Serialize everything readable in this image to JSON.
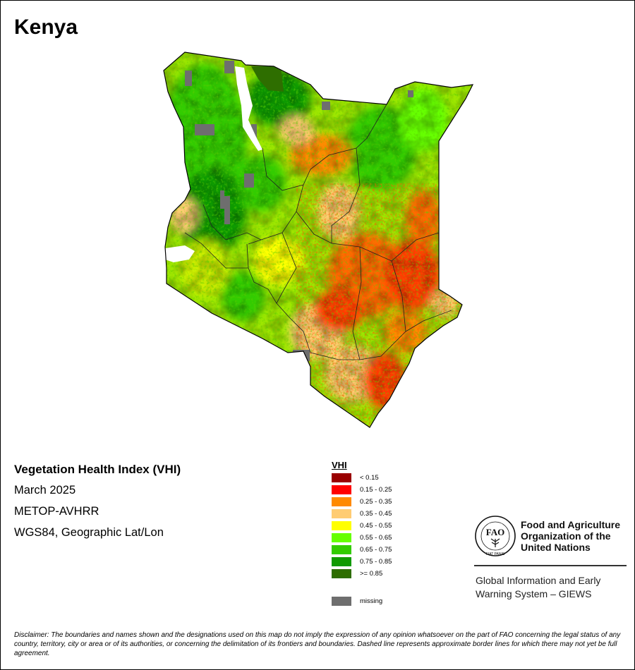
{
  "map_title": "Kenya",
  "info": {
    "product": "Vegetation Health Index (VHI)",
    "period": "March 2025",
    "sensor": "METOP-AVHRR",
    "projection": "WGS84, Geographic Lat/Lon"
  },
  "legend": {
    "title": "VHI",
    "classes": [
      {
        "label": "< 0.15",
        "color": "#9a0000"
      },
      {
        "label": "0.15 - 0.25",
        "color": "#ff0000"
      },
      {
        "label": "0.25 - 0.35",
        "color": "#ff8a00"
      },
      {
        "label": "0.35 - 0.45",
        "color": "#ffcc73"
      },
      {
        "label": "0.45 - 0.55",
        "color": "#ffff00"
      },
      {
        "label": "0.55 - 0.65",
        "color": "#66ff00"
      },
      {
        "label": "0.65 - 0.75",
        "color": "#33cc00"
      },
      {
        "label": "0.75 - 0.85",
        "color": "#119a00"
      },
      {
        "label": ">= 0.85",
        "color": "#2e6e00"
      }
    ],
    "missing": {
      "label": "missing",
      "color": "#6e6e6e"
    }
  },
  "org": {
    "name_line1": "Food and Agriculture",
    "name_line2": "Organization of the",
    "name_line3": "United Nations",
    "logo_text": "FAO",
    "logo_motto": "FIAT PANIS",
    "system_line1": "Global Information and Early",
    "system_line2": "Warning System – GIEWS"
  },
  "disclaimer": {
    "label": "Disclaimer:",
    "text": " The boundaries and names shown and the designations used on this map do not imply the expression of any opinion whatsoever on the part of FAO concerning the legal status of any country, territory, city or area or of its authorities, or concerning the delimitation of its frontiers and boundaries. Dashed line represents approximate border lines for which there may not yet be full agreement."
  }
}
